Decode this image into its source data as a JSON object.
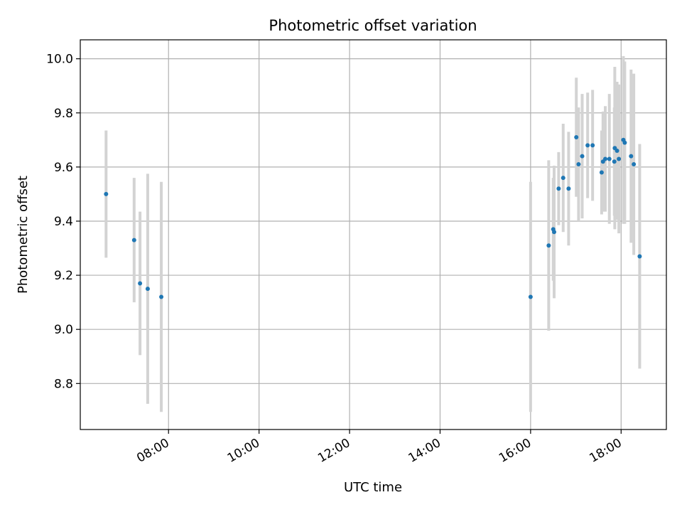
{
  "chart_data": {
    "type": "scatter",
    "title": "Photometric offset variation",
    "xlabel": "UTC time",
    "ylabel": "Photometric offset",
    "x_unit": "hours UTC",
    "xlim": [
      6.05,
      19.0
    ],
    "ylim": [
      8.63,
      10.07
    ],
    "x_ticks": [
      {
        "value": 8,
        "label": "08:00"
      },
      {
        "value": 10,
        "label": "10:00"
      },
      {
        "value": 12,
        "label": "12:00"
      },
      {
        "value": 14,
        "label": "14:00"
      },
      {
        "value": 16,
        "label": "16:00"
      },
      {
        "value": 18,
        "label": "18:00"
      }
    ],
    "y_ticks": [
      {
        "value": 8.8,
        "label": "8.8"
      },
      {
        "value": 9.0,
        "label": "9.0"
      },
      {
        "value": 9.2,
        "label": "9.2"
      },
      {
        "value": 9.4,
        "label": "9.4"
      },
      {
        "value": 9.6,
        "label": "9.6"
      },
      {
        "value": 9.8,
        "label": "9.8"
      },
      {
        "value": 10.0,
        "label": "10.0"
      }
    ],
    "grid": true,
    "colors": {
      "point": "#1f77b4",
      "errorbar": "#d3d3d3",
      "grid": "#b0b0b0"
    },
    "points": [
      {
        "x": 6.62,
        "y": 9.5,
        "err": 0.235
      },
      {
        "x": 7.24,
        "y": 9.33,
        "err": 0.23
      },
      {
        "x": 7.37,
        "y": 9.17,
        "err": 0.265
      },
      {
        "x": 7.54,
        "y": 9.15,
        "err": 0.425
      },
      {
        "x": 7.84,
        "y": 9.12,
        "err": 0.425
      },
      {
        "x": 16.0,
        "y": 9.12,
        "err": 0.425
      },
      {
        "x": 16.4,
        "y": 9.31,
        "err": 0.315
      },
      {
        "x": 16.5,
        "y": 9.37,
        "err": 0.19
      },
      {
        "x": 16.52,
        "y": 9.36,
        "err": 0.245
      },
      {
        "x": 16.62,
        "y": 9.52,
        "err": 0.135
      },
      {
        "x": 16.72,
        "y": 9.56,
        "err": 0.2
      },
      {
        "x": 16.84,
        "y": 9.52,
        "err": 0.21
      },
      {
        "x": 17.01,
        "y": 9.71,
        "err": 0.22
      },
      {
        "x": 17.06,
        "y": 9.61,
        "err": 0.21
      },
      {
        "x": 17.14,
        "y": 9.64,
        "err": 0.23
      },
      {
        "x": 17.26,
        "y": 9.68,
        "err": 0.195
      },
      {
        "x": 17.37,
        "y": 9.68,
        "err": 0.205
      },
      {
        "x": 17.57,
        "y": 9.58,
        "err": 0.155
      },
      {
        "x": 17.6,
        "y": 9.62,
        "err": 0.185
      },
      {
        "x": 17.65,
        "y": 9.63,
        "err": 0.195
      },
      {
        "x": 17.74,
        "y": 9.63,
        "err": 0.24
      },
      {
        "x": 17.85,
        "y": 9.62,
        "err": 0.2
      },
      {
        "x": 17.86,
        "y": 9.67,
        "err": 0.3
      },
      {
        "x": 17.91,
        "y": 9.66,
        "err": 0.255
      },
      {
        "x": 17.95,
        "y": 9.63,
        "err": 0.275
      },
      {
        "x": 18.05,
        "y": 9.7,
        "err": 0.31
      },
      {
        "x": 18.08,
        "y": 9.69,
        "err": 0.3
      },
      {
        "x": 18.22,
        "y": 9.64,
        "err": 0.32
      },
      {
        "x": 18.28,
        "y": 9.61,
        "err": 0.335
      },
      {
        "x": 18.41,
        "y": 9.27,
        "err": 0.415
      }
    ]
  }
}
